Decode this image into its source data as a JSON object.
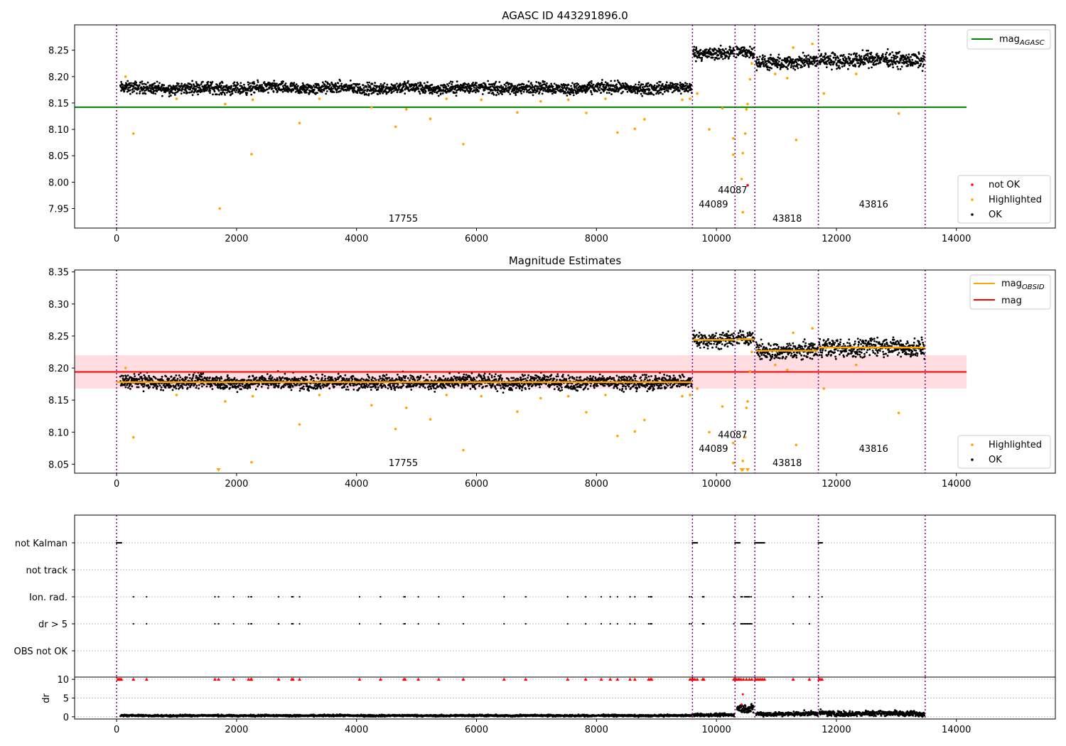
{
  "colors": {
    "ok": "#000000",
    "highlighted": "#ffa500",
    "not_ok": "#ff0000",
    "agasc_line": "#008000",
    "mag_line": "#ff0000",
    "mag_band": "#ffdde1",
    "obsid_line": "#ffa500",
    "obs_boundary": "#800080",
    "grid": "#b0b0b0"
  },
  "chart_data": [
    {
      "type": "scatter",
      "title": "AGASC ID 443291896.0",
      "xlim": [
        -700,
        15650
      ],
      "ylim": [
        7.913,
        8.298
      ],
      "x_ticks": [
        0,
        2000,
        4000,
        6000,
        8000,
        10000,
        12000,
        14000
      ],
      "y_ticks": [
        7.95,
        8.0,
        8.05,
        8.1,
        8.15,
        8.2,
        8.25
      ],
      "obs_boundaries": [
        0,
        9600,
        10310,
        10640,
        11700,
        13480
      ],
      "obsid_labels": [
        {
          "text": "17755",
          "x": 4780,
          "y": 7.925
        },
        {
          "text": "44089",
          "x": 9950,
          "y": 7.952
        },
        {
          "text": "44087",
          "x": 10270,
          "y": 7.979
        },
        {
          "text": "43818",
          "x": 11180,
          "y": 7.925
        },
        {
          "text": "43816",
          "x": 12620,
          "y": 7.952
        }
      ],
      "horizontal_lines": [
        {
          "name": "mag_AGASC",
          "y": 8.142,
          "x": [
            -700,
            14170
          ],
          "color": "#008000"
        }
      ],
      "ok_segments": [
        {
          "x": [
            60,
            9590
          ],
          "ymid": 8.178,
          "spread": 0.011
        },
        {
          "x": [
            9610,
            10300
          ],
          "ymid": 8.245,
          "spread": 0.012
        },
        {
          "x": [
            10330,
            10630
          ],
          "ymid": 8.245,
          "spread": 0.011
        },
        {
          "x": [
            10660,
            11690
          ],
          "ymid": 8.227,
          "spread": 0.013
        },
        {
          "x": [
            11710,
            13470
          ],
          "ymid": 8.232,
          "spread": 0.014
        }
      ],
      "highlighted_points": [
        [
          280,
          8.092
        ],
        [
          1720,
          7.95
        ],
        [
          1810,
          8.148
        ],
        [
          2250,
          8.053
        ],
        [
          3050,
          8.112
        ],
        [
          4650,
          8.105
        ],
        [
          4830,
          8.138
        ],
        [
          5230,
          8.12
        ],
        [
          5780,
          8.072
        ],
        [
          6680,
          8.132
        ],
        [
          7830,
          8.131
        ],
        [
          8350,
          8.094
        ],
        [
          8640,
          8.101
        ],
        [
          8800,
          8.119
        ],
        [
          9560,
          8.158
        ],
        [
          9680,
          8.168
        ],
        [
          9880,
          8.1
        ],
        [
          10280,
          8.083
        ],
        [
          10280,
          8.052
        ],
        [
          10420,
          8.006
        ],
        [
          10440,
          8.055
        ],
        [
          10440,
          7.943
        ],
        [
          10480,
          8.092
        ],
        [
          10500,
          8.138
        ],
        [
          10520,
          8.148
        ],
        [
          10560,
          8.195
        ],
        [
          10590,
          8.225
        ],
        [
          11330,
          8.08
        ],
        [
          11790,
          8.168
        ],
        [
          13040,
          8.13
        ],
        [
          150,
          8.2
        ],
        [
          1000,
          8.158
        ],
        [
          2270,
          8.156
        ],
        [
          3380,
          8.158
        ],
        [
          4250,
          8.142
        ],
        [
          5500,
          8.158
        ],
        [
          6080,
          8.156
        ],
        [
          7070,
          8.153
        ],
        [
          7530,
          8.156
        ],
        [
          8150,
          8.158
        ],
        [
          9430,
          8.156
        ],
        [
          10980,
          8.205
        ],
        [
          11180,
          8.197
        ],
        [
          11280,
          8.255
        ],
        [
          11600,
          8.262
        ],
        [
          12330,
          8.205
        ],
        [
          10100,
          8.14
        ]
      ],
      "not_ok_points": [
        [
          10520,
          7.994
        ]
      ],
      "legend": {
        "position": "top-right",
        "entries": [
          "mag_AGASC"
        ]
      },
      "legend2": {
        "position": "bottom-right",
        "entries": [
          "not OK",
          "Highlighted",
          "OK"
        ]
      }
    },
    {
      "type": "scatter",
      "title": "Magnitude Estimates",
      "xlim": [
        -700,
        15650
      ],
      "ylim": [
        8.036,
        8.353
      ],
      "x_ticks": [
        0,
        2000,
        4000,
        6000,
        8000,
        10000,
        12000,
        14000
      ],
      "y_ticks": [
        8.05,
        8.1,
        8.15,
        8.2,
        8.25,
        8.3,
        8.35
      ],
      "obs_boundaries": [
        0,
        9600,
        10310,
        10640,
        11700,
        13480
      ],
      "obsid_labels": [
        {
          "text": "17755",
          "x": 4780,
          "y": 8.047
        },
        {
          "text": "44089",
          "x": 9950,
          "y": 8.069
        },
        {
          "text": "44087",
          "x": 10270,
          "y": 8.091
        },
        {
          "text": "43818",
          "x": 11180,
          "y": 8.047
        },
        {
          "text": "43816",
          "x": 12620,
          "y": 8.069
        }
      ],
      "mag_band": {
        "y": [
          8.168,
          8.22
        ],
        "x": [
          -700,
          14170
        ]
      },
      "horizontal_lines": [
        {
          "name": "mag",
          "y": 8.194,
          "x": [
            -700,
            14170
          ],
          "color": "#ff0000"
        }
      ],
      "obsid_mag_segments": [
        {
          "x": [
            0,
            9590
          ],
          "y": 8.178
        },
        {
          "x": [
            9610,
            10300
          ],
          "y": 8.244
        },
        {
          "x": [
            10330,
            10630
          ],
          "y": 8.245
        },
        {
          "x": [
            10660,
            11690
          ],
          "y": 8.227
        },
        {
          "x": [
            11710,
            13480
          ],
          "y": 8.232
        }
      ],
      "ok_segments": [
        {
          "x": [
            60,
            9590
          ],
          "ymid": 8.178,
          "spread": 0.011
        },
        {
          "x": [
            9610,
            10300
          ],
          "ymid": 8.245,
          "spread": 0.012
        },
        {
          "x": [
            10330,
            10630
          ],
          "ymid": 8.245,
          "spread": 0.011
        },
        {
          "x": [
            10660,
            11690
          ],
          "ymid": 8.227,
          "spread": 0.013
        },
        {
          "x": [
            11710,
            13470
          ],
          "ymid": 8.232,
          "spread": 0.014
        }
      ],
      "highlighted_points": [
        [
          280,
          8.092
        ],
        [
          1810,
          8.148
        ],
        [
          2250,
          8.053
        ],
        [
          3050,
          8.112
        ],
        [
          4650,
          8.105
        ],
        [
          4830,
          8.138
        ],
        [
          5230,
          8.12
        ],
        [
          5780,
          8.072
        ],
        [
          6680,
          8.132
        ],
        [
          7830,
          8.131
        ],
        [
          8350,
          8.094
        ],
        [
          8640,
          8.101
        ],
        [
          8800,
          8.119
        ],
        [
          9560,
          8.158
        ],
        [
          9680,
          8.168
        ],
        [
          9880,
          8.1
        ],
        [
          10280,
          8.083
        ],
        [
          10280,
          8.052
        ],
        [
          10440,
          8.055
        ],
        [
          10480,
          8.092
        ],
        [
          10500,
          8.138
        ],
        [
          10520,
          8.148
        ],
        [
          10560,
          8.195
        ],
        [
          10590,
          8.225
        ],
        [
          11330,
          8.08
        ],
        [
          11790,
          8.168
        ],
        [
          13040,
          8.13
        ],
        [
          150,
          8.2
        ],
        [
          1000,
          8.158
        ],
        [
          2270,
          8.156
        ],
        [
          3380,
          8.158
        ],
        [
          4250,
          8.142
        ],
        [
          5500,
          8.158
        ],
        [
          6080,
          8.156
        ],
        [
          7070,
          8.153
        ],
        [
          7530,
          8.156
        ],
        [
          8150,
          8.158
        ],
        [
          9430,
          8.156
        ],
        [
          10980,
          8.205
        ],
        [
          11180,
          8.197
        ],
        [
          11280,
          8.255
        ],
        [
          11600,
          8.262
        ],
        [
          12330,
          8.205
        ],
        [
          10100,
          8.14
        ]
      ],
      "clipped_low_points": [
        [
          1700,
          8.036
        ],
        [
          10420,
          8.036
        ],
        [
          10440,
          8.036
        ],
        [
          10520,
          8.036
        ]
      ],
      "legend": {
        "position": "top-right",
        "entries": [
          "mag_OBSID",
          "mag"
        ]
      },
      "legend2": {
        "position": "bottom-right",
        "entries": [
          "Highlighted",
          "OK"
        ]
      }
    },
    {
      "type": "scatter",
      "title": "",
      "xlim": [
        -700,
        15650
      ],
      "categories": [
        "not Kalman",
        "not track",
        "Ion. rad.",
        "dr > 5",
        "OBS not OK"
      ],
      "obs_boundaries": [
        0,
        9600,
        10310,
        10640,
        11700,
        13480
      ],
      "flags": {
        "not Kalman": [
          [
            0,
            80
          ],
          [
            9600,
            9680
          ],
          [
            10310,
            10390
          ],
          [
            10640,
            10800
          ],
          [
            11700,
            11770
          ]
        ],
        "not track": [],
        "Ion. rad.": [
          280,
          500,
          1640,
          1700,
          1950,
          2200,
          2240,
          2250,
          2700,
          2920,
          2940,
          3050,
          4050,
          4400,
          4790,
          4810,
          5030,
          5370,
          5780,
          6460,
          6820,
          7520,
          7820,
          8080,
          8230,
          8350,
          8560,
          8640,
          8870,
          8900,
          8920,
          9550,
          9580,
          9770,
          9790,
          10290,
          10410,
          10430,
          10470,
          10490,
          10510,
          10530,
          10550,
          10580,
          11280,
          11550,
          11760
        ],
        "dr > 5": [
          280,
          500,
          1640,
          1700,
          1950,
          2200,
          2240,
          2250,
          2700,
          2920,
          2940,
          3050,
          4050,
          4400,
          4790,
          4810,
          5030,
          5370,
          5780,
          6460,
          6820,
          7520,
          7820,
          8080,
          8230,
          8350,
          8560,
          8640,
          8870,
          8900,
          8920,
          9550,
          9580,
          9770,
          9790,
          10290,
          10410,
          10430,
          10450,
          10470,
          10490,
          10510,
          10530,
          10550,
          10570,
          10590,
          11280,
          11550
        ],
        "OBS not OK": []
      }
    },
    {
      "type": "scatter",
      "ylabel": "dr",
      "xlim": [
        -700,
        15650
      ],
      "ylim": [
        -0.6,
        10.6
      ],
      "x_ticks": [
        0,
        2000,
        4000,
        6000,
        8000,
        10000,
        12000,
        14000
      ],
      "y_ticks": [
        0,
        5,
        10
      ],
      "obs_boundaries": [
        0,
        9600,
        10310,
        10640,
        11700,
        13480
      ],
      "ok_segments": [
        {
          "x": [
            60,
            9590
          ],
          "ymid": 0.3,
          "spread": 0.25
        },
        {
          "x": [
            9610,
            10300
          ],
          "ymid": 0.5,
          "spread": 0.4
        },
        {
          "x": [
            10340,
            10620
          ],
          "ymid": 2.0,
          "spread": 1.2
        },
        {
          "x": [
            10660,
            11690
          ],
          "ymid": 0.8,
          "spread": 0.6
        },
        {
          "x": [
            11710,
            13470
          ],
          "ymid": 0.9,
          "spread": 0.7
        }
      ],
      "clipped_points_y10": [
        20,
        40,
        60,
        80,
        280,
        500,
        1640,
        1700,
        1950,
        2200,
        2240,
        2250,
        2700,
        2920,
        2940,
        3050,
        4050,
        4400,
        4790,
        4810,
        5030,
        5370,
        5780,
        6460,
        6820,
        7520,
        7820,
        8080,
        8230,
        8350,
        8560,
        8640,
        8870,
        8900,
        8920,
        9560,
        9590,
        9610,
        9640,
        9680,
        9770,
        9790,
        10290,
        10310,
        10330,
        10360,
        10380,
        10410,
        10450,
        10500,
        10550,
        10590,
        10650,
        10680,
        10710,
        10740,
        10770,
        10800,
        11280,
        11550,
        11710,
        11730,
        11760
      ],
      "not_ok_extra": [
        [
          10440,
          6.0
        ],
        [
          10420,
          3.3
        ]
      ]
    }
  ]
}
